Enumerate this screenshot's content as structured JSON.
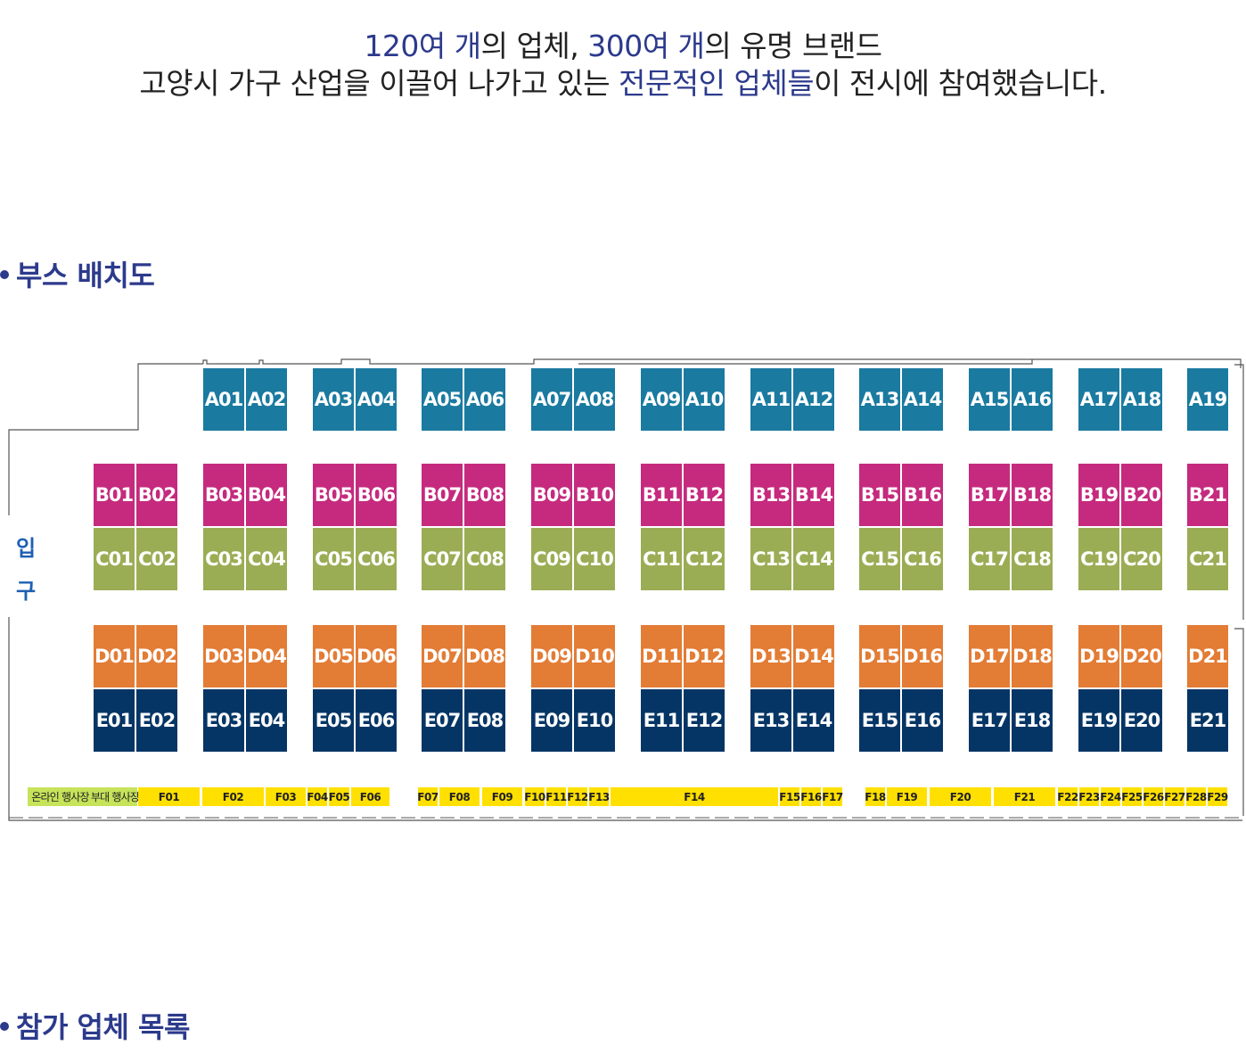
{
  "intro": {
    "line1": [
      {
        "text": "120여 개",
        "hl": true
      },
      {
        "text": "의 업체, ",
        "hl": false
      },
      {
        "text": "300여 개",
        "hl": true
      },
      {
        "text": "의 유명 브랜드",
        "hl": false
      }
    ],
    "line2": [
      {
        "text": "고양시 가구 산업을 이끌어 나가고 있는 ",
        "hl": false
      },
      {
        "text": "전문적인 업체들",
        "hl": true
      },
      {
        "text": "이 전시에 참여했습니다.",
        "hl": false
      }
    ]
  },
  "section_booth": "부스 배치도",
  "section_list": "참가 업체 목록",
  "map": {
    "entrance_chars": [
      "입",
      "구"
    ],
    "colors": {
      "A": "#1a7aa0",
      "B": "#c52a7e",
      "C": "#9aad55",
      "D": "#e37c35",
      "E": "#053565",
      "F": "#ffe000",
      "event": "#c7e35a"
    },
    "rows": {
      "A": [
        "A01",
        "A02",
        "A03",
        "A04",
        "A05",
        "A06",
        "A07",
        "A08",
        "A09",
        "A10",
        "A11",
        "A12",
        "A13",
        "A14",
        "A15",
        "A16",
        "A17",
        "A18",
        "A19"
      ],
      "B": [
        "B01",
        "B02",
        "B03",
        "B04",
        "B05",
        "B06",
        "B07",
        "B08",
        "B09",
        "B10",
        "B11",
        "B12",
        "B13",
        "B14",
        "B15",
        "B16",
        "B17",
        "B18",
        "B19",
        "B20",
        "B21"
      ],
      "C": [
        "C01",
        "C02",
        "C03",
        "C04",
        "C05",
        "C06",
        "C07",
        "C08",
        "C09",
        "C10",
        "C11",
        "C12",
        "C13",
        "C14",
        "C15",
        "C16",
        "C17",
        "C18",
        "C19",
        "C20",
        "C21"
      ],
      "D": [
        "D01",
        "D02",
        "D03",
        "D04",
        "D05",
        "D06",
        "D07",
        "D08",
        "D09",
        "D10",
        "D11",
        "D12",
        "D13",
        "D14",
        "D15",
        "D16",
        "D17",
        "D18",
        "D19",
        "D20",
        "D21"
      ],
      "E": [
        "E01",
        "E02",
        "E03",
        "E04",
        "E05",
        "E06",
        "E07",
        "E08",
        "E09",
        "E10",
        "E11",
        "E12",
        "E13",
        "E14",
        "E15",
        "E16",
        "E17",
        "E18",
        "E19",
        "E20",
        "E21"
      ]
    },
    "f_row": [
      "F01",
      "F02",
      "F03",
      "F04",
      "F05",
      "F06",
      "F07",
      "F08",
      "F09",
      "F10",
      "F11",
      "F12",
      "F13",
      "F14",
      "F15",
      "F16",
      "F17",
      "F18",
      "F19",
      "F20",
      "F21",
      "F22",
      "F23",
      "F24",
      "F25",
      "F26",
      "F27",
      "F28",
      "F29"
    ],
    "event_areas": [
      "온라인 행사장",
      "부대 행사장"
    ]
  }
}
